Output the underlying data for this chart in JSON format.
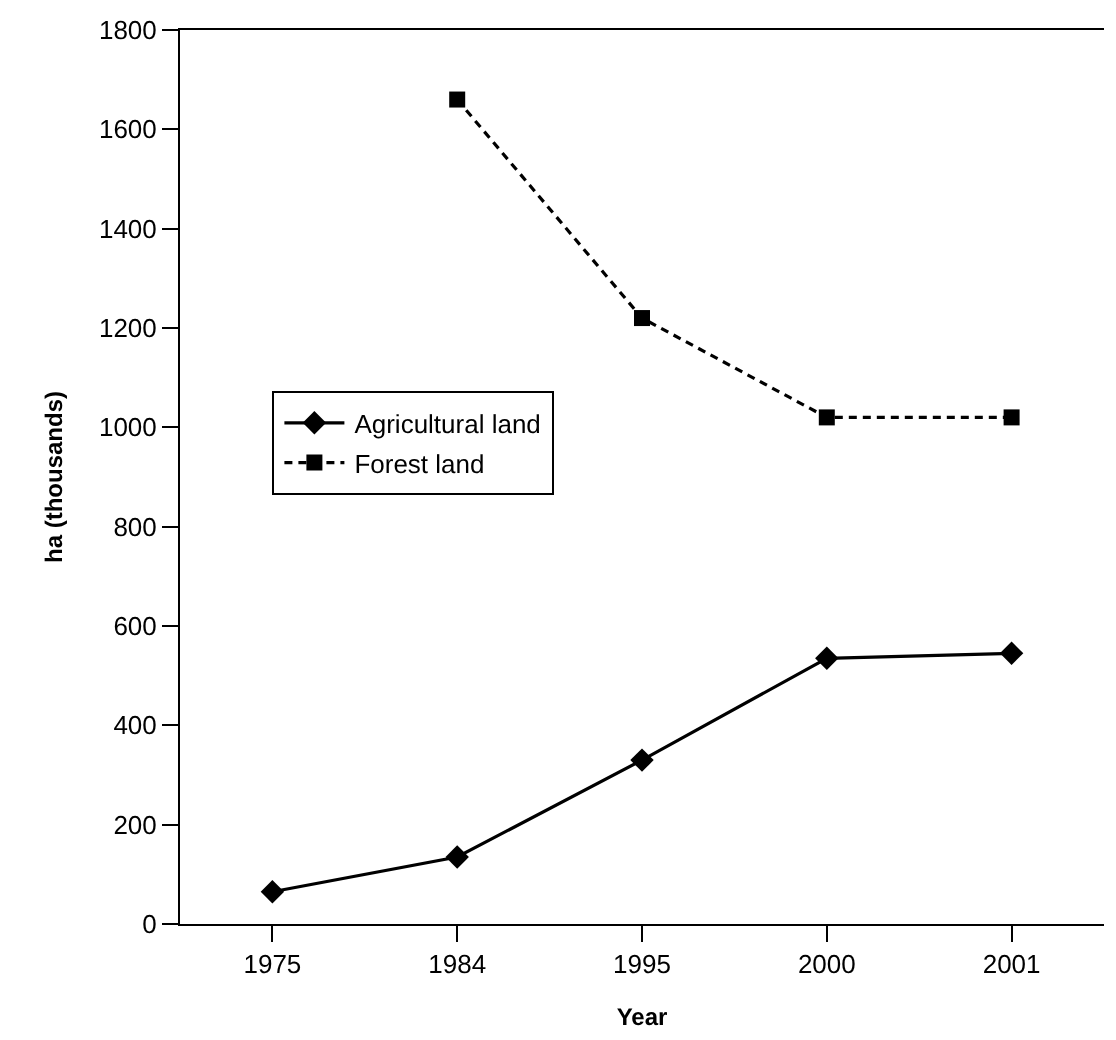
{
  "chart_data": {
    "type": "line",
    "xlabel": "Year",
    "ylabel": "ha (thousands)",
    "categories": [
      "1975",
      "1984",
      "1995",
      "2000",
      "2001"
    ],
    "series": [
      {
        "name": "Agricultural land",
        "color": "#000000",
        "values": [
          65,
          135,
          330,
          535,
          545
        ],
        "marker": "diamond",
        "line_style": "solid"
      },
      {
        "name": "Forest land",
        "color": "#000000",
        "values": [
          null,
          1660,
          1220,
          1020,
          1020
        ],
        "marker": "square",
        "line_style": "dashed"
      }
    ],
    "ylim": [
      0,
      1800
    ],
    "yticks": [
      0,
      200,
      400,
      600,
      800,
      1000,
      1200,
      1400,
      1600,
      1800
    ],
    "legend": "left"
  }
}
